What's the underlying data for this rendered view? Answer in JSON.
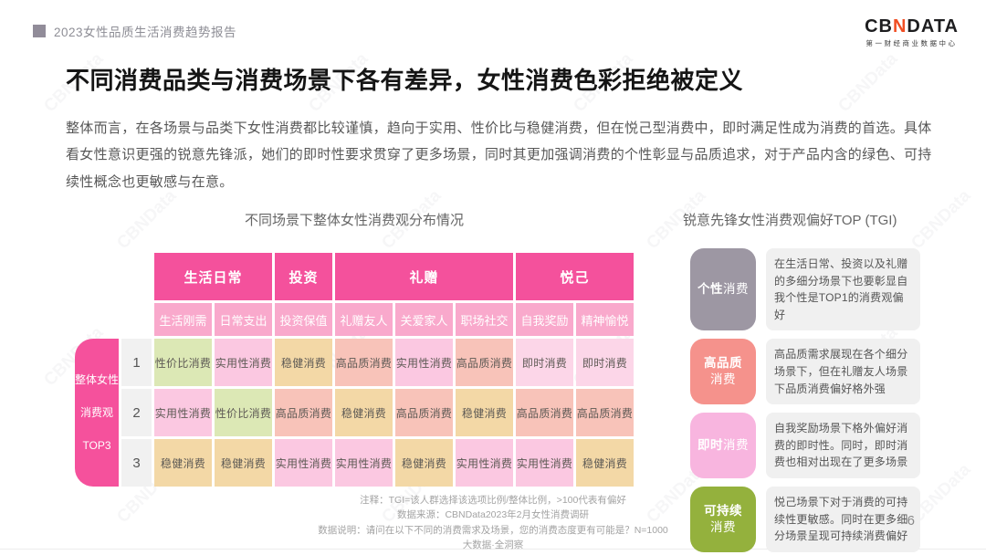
{
  "page": {
    "page_number": "6",
    "watermark_text": "CBNData"
  },
  "topbar": {
    "report_title": "2023女性品质生活消费趋势报告"
  },
  "logo": {
    "part_cb": "CB",
    "part_n": "N",
    "part_data": "DATA",
    "subtitle": "第一财经商业数据中心",
    "accent_color": "#f04e23"
  },
  "main": {
    "title": "不同消费品类与消费场景下各有差异，女性消费色彩拒绝被定义",
    "paragraph": "整体而言，在各场景与品类下女性消费都比较谨慎，趋向于实用、性价比与稳健消费，但在悦己型消费中，即时满足性成为消费的首选。具体看女性意识更强的锐意先锋派，她们的即时性要求贯穿了更多场景，同时其更加强调消费的个性彰显与品质追求，对于产品内含的绿色、可持续性概念也更敏感与在意。"
  },
  "chart_data": {
    "type": "table",
    "title": "不同场景下整体女性消费观分布情况",
    "row_group_label_lines": [
      "整体女性",
      "消费观",
      "TOP3"
    ],
    "column_groups": [
      {
        "label": "生活日常",
        "span": 2
      },
      {
        "label": "投资",
        "span": 1
      },
      {
        "label": "礼赠",
        "span": 3
      },
      {
        "label": "悦己",
        "span": 2
      }
    ],
    "columns": [
      "生活刚需",
      "日常支出",
      "投资保值",
      "礼赠友人",
      "关爱家人",
      "职场社交",
      "自我奖励",
      "精神愉悦"
    ],
    "rows": [
      {
        "rank": "1",
        "cells": [
          "性价比消费",
          "实用性消费",
          "稳健消费",
          "高品质消费",
          "实用性消费",
          "高品质消费",
          "即时消费",
          "即时消费"
        ]
      },
      {
        "rank": "2",
        "cells": [
          "实用性消费",
          "性价比消费",
          "高品质消费",
          "稳健消费",
          "高品质消费",
          "稳健消费",
          "高品质消费",
          "高品质消费"
        ]
      },
      {
        "rank": "3",
        "cells": [
          "稳健消费",
          "稳健消费",
          "实用性消费",
          "实用性消费",
          "稳健消费",
          "实用性消费",
          "实用性消费",
          "稳健消费"
        ]
      }
    ],
    "colors": {
      "header": "#f4519c",
      "subheader": "#f9a9cc",
      "row_label": "#f5519c",
      "rank_bg": "#f1f1f1",
      "cells": {
        "性价比消费": "#dce8b5",
        "实用性消费": "#fbc8e1",
        "稳健消费": "#f3d8a6",
        "高品质消费": "#f8c3b9",
        "即时消费": "#fcd6e8"
      }
    }
  },
  "tgi_panel": {
    "title": "锐意先锋女性消费观偏好TOP (TGI)",
    "items": [
      {
        "badge_strong": "个性",
        "badge_rest": "消费",
        "two_line": false,
        "badge_color": "#9d97a3",
        "text": "在生活日常、投资以及礼赠的多细分场景下也要彰显自我个性是TOP1的消费观偏好"
      },
      {
        "badge_strong": "高品质",
        "badge_rest": "消费",
        "two_line": true,
        "badge_color": "#f5928c",
        "text": "高品质需求展现在各个细分场景下，但在礼赠友人场景下品质消费偏好格外强"
      },
      {
        "badge_strong": "即时",
        "badge_rest": "消费",
        "two_line": false,
        "badge_color": "#f8b5df",
        "text": "自我奖励场景下格外偏好消费的即时性。同时，即时消费也相对出现在了更多场景"
      },
      {
        "badge_strong": "可持续",
        "badge_rest": "消费",
        "two_line": true,
        "badge_color": "#94b13d",
        "text": "悦己场景下对于消费的可持续性更敏感。同时在更多细分场景呈现可持续消费偏好"
      }
    ]
  },
  "footnotes": [
    "注释：TGI=该人群选择该选项比例/整体比例，>100代表有偏好",
    "数据来源：CBNData2023年2月女性消费调研",
    "数据说明：请问在以下不同的消费需求及场景，您的消费态度更有可能是？N=1000",
    "大数据·全洞察"
  ]
}
